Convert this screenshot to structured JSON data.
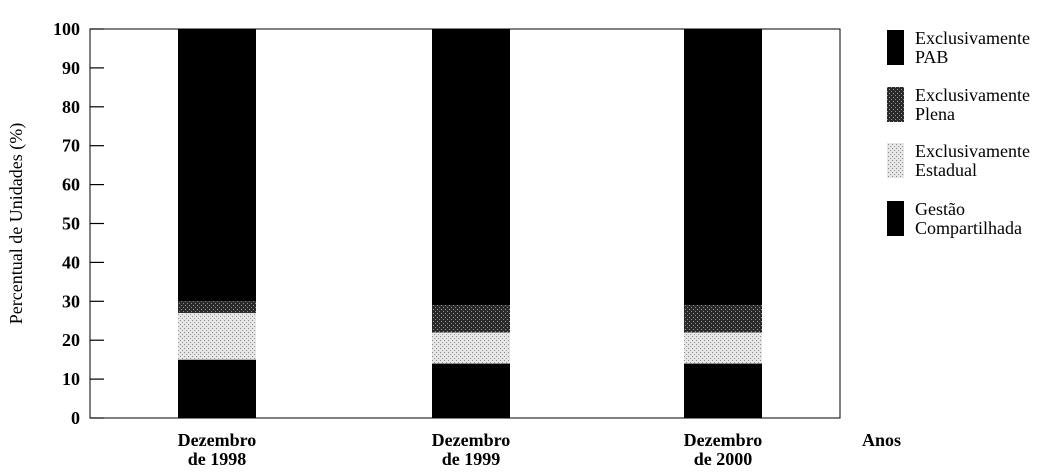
{
  "chart_data": {
    "type": "bar",
    "stacked": true,
    "categories": [
      "Dezembro de 1998",
      "Dezembro de 1999",
      "Dezembro de 2000"
    ],
    "category_lines": [
      [
        "Dezembro",
        "de 1998"
      ],
      [
        "Dezembro",
        "de 1999"
      ],
      [
        "Dezembro",
        "de 2000"
      ]
    ],
    "series": [
      {
        "name": "Gestão Compartilhada",
        "name_lines": [
          "Gestão",
          "Compartilhada"
        ],
        "values": [
          15,
          14,
          14
        ],
        "color": "#000000",
        "pattern": "solid"
      },
      {
        "name": "Exclusivamente Estadual",
        "name_lines": [
          "Exclusivamente",
          "Estadual"
        ],
        "values": [
          12,
          8,
          8
        ],
        "color": "#cfcfcf",
        "pattern": "light"
      },
      {
        "name": "Exclusivamente Plena",
        "name_lines": [
          "Exclusivamente",
          "Plena"
        ],
        "values": [
          3,
          7,
          7
        ],
        "color": "#555555",
        "pattern": "dark"
      },
      {
        "name": "Exclusivamente PAB",
        "name_lines": [
          "Exclusivamente",
          "PAB"
        ],
        "values": [
          70,
          71,
          71
        ],
        "color": "#000000",
        "pattern": "solid"
      }
    ],
    "xlabel": "Anos",
    "ylabel": "Percentual de Unidades (%)",
    "ylim": [
      0,
      100
    ],
    "yticks": [
      0,
      10,
      20,
      30,
      40,
      50,
      60,
      70,
      80,
      90,
      100
    ],
    "grid": false,
    "legend_position": "right",
    "legend_order": [
      "Exclusivamente PAB",
      "Exclusivamente Plena",
      "Exclusivamente Estadual",
      "Gestão Compartilhada"
    ]
  }
}
